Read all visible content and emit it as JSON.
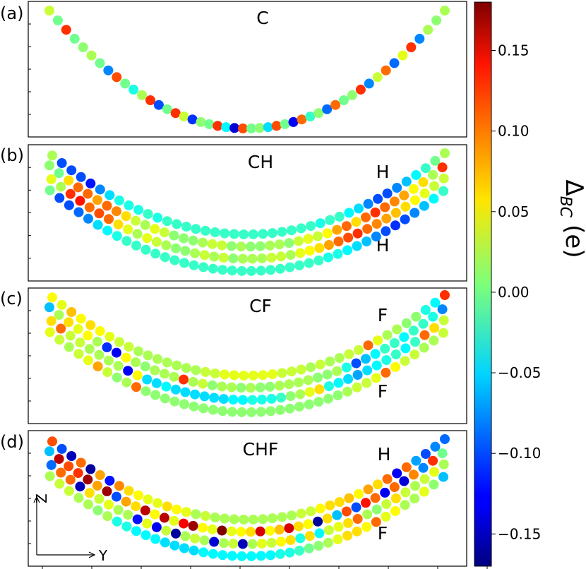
{
  "chart_data": {
    "type": "scatter",
    "colormap": "jet",
    "colorbar": {
      "label": "Δ",
      "label_sub": "BC",
      "label_unit": "(e)",
      "range": [
        -0.17,
        0.18
      ],
      "ticks": [
        0.15,
        0.1,
        0.05,
        0.0,
        -0.05,
        -0.1,
        -0.15
      ],
      "tick_labels": [
        "0.15",
        "0.10",
        "0.05",
        "0.00",
        "−0.05",
        "−0.10",
        "−0.15"
      ]
    },
    "axes_labels": {
      "z": "Z",
      "y": "Y"
    },
    "panels": [
      {
        "label": "(a)",
        "title": "C",
        "side_labels": [],
        "rows": [
          {
            "count": 48,
            "amp": 1.0,
            "offset": 0.0,
            "x0": 0.0,
            "x1": 1.0,
            "values": [
              0.03,
              0.0,
              0.12,
              0.0,
              0.01,
              0.02,
              0.0,
              -0.08,
              0.11,
              0.0,
              -0.03,
              0.02,
              0.12,
              -0.1,
              0.0,
              0.12,
              0.03,
              -0.11,
              0.01,
              0.0,
              0.12,
              -0.04,
              -0.14,
              0.11,
              0.0,
              0.01,
              -0.05,
              0.11,
              0.0,
              -0.13,
              0.1,
              -0.02,
              0.01,
              -0.09,
              0.1,
              0.0,
              0.01,
              0.12,
              -0.08,
              0.03,
              0.1,
              -0.09,
              0.04,
              0.12,
              -0.08,
              0.02,
              0.01,
              0.02
            ]
          }
        ]
      },
      {
        "label": "(b)",
        "title": "CH",
        "side_labels": [
          {
            "text": "H",
            "pos": "top"
          },
          {
            "text": "H",
            "pos": "bottom"
          }
        ],
        "rows": [
          {
            "count": 42,
            "amp": 1.0,
            "offset": 0.0,
            "x0": 0.06,
            "x1": 1.0,
            "values": [
              0.02,
              -0.1,
              -0.1,
              -0.1,
              -0.12,
              -0.08,
              -0.05,
              -0.03,
              -0.03,
              -0.03,
              -0.02,
              -0.03,
              -0.02,
              -0.02,
              -0.02,
              -0.02,
              -0.02,
              -0.02,
              -0.02,
              -0.02,
              -0.02,
              -0.02,
              -0.02,
              -0.02,
              -0.02,
              -0.02,
              -0.02,
              -0.02,
              -0.03,
              -0.02,
              -0.02,
              -0.04,
              -0.05,
              -0.08,
              -0.1,
              -0.1,
              -0.08,
              -0.06,
              -0.04,
              -0.02,
              0.0,
              0.02
            ]
          },
          {
            "count": 42,
            "amp": 1.0,
            "offset": 0.11,
            "x0": 0.0,
            "x1": 0.95,
            "values": [
              0.01,
              0.0,
              0.06,
              0.1,
              0.1,
              0.08,
              0.1,
              0.09,
              0.06,
              0.03,
              0.02,
              0.04,
              0.03,
              0.01,
              0.01,
              0.01,
              0.02,
              0.03,
              0.03,
              0.01,
              0.02,
              0.01,
              0.01,
              0.02,
              0.02,
              0.01,
              0.03,
              0.04,
              0.03,
              0.05,
              0.08,
              0.1,
              0.06,
              0.1,
              0.12,
              0.1,
              0.09,
              0.08,
              0.05,
              0.06,
              0.02,
              0.12
            ]
          },
          {
            "count": 42,
            "amp": 1.0,
            "offset": 0.22,
            "x0": 0.04,
            "x1": 0.98,
            "values": [
              0.04,
              0.02,
              0.12,
              0.13,
              0.1,
              0.11,
              0.1,
              0.06,
              0.04,
              0.02,
              0.04,
              0.03,
              0.02,
              0.01,
              0.01,
              0.02,
              0.03,
              0.02,
              0.03,
              0.01,
              0.02,
              0.02,
              0.02,
              0.03,
              0.03,
              0.02,
              0.04,
              0.05,
              0.06,
              0.08,
              0.1,
              0.11,
              0.12,
              0.1,
              0.09,
              0.08,
              0.07,
              0.06,
              0.05,
              0.04,
              0.03,
              0.03
            ]
          },
          {
            "count": 42,
            "amp": 1.0,
            "offset": 0.33,
            "x0": 0.01,
            "x1": 0.97,
            "values": [
              0.0,
              -0.1,
              -0.1,
              -0.09,
              -0.08,
              -0.05,
              -0.04,
              -0.03,
              -0.02,
              -0.02,
              -0.02,
              -0.02,
              -0.02,
              -0.02,
              -0.02,
              -0.02,
              -0.02,
              -0.02,
              -0.02,
              -0.02,
              -0.02,
              -0.02,
              -0.02,
              -0.02,
              -0.02,
              -0.02,
              -0.02,
              -0.02,
              -0.02,
              -0.03,
              -0.03,
              -0.04,
              -0.05,
              -0.06,
              -0.08,
              -0.1,
              -0.11,
              -0.1,
              -0.08,
              -0.06,
              -0.04,
              -0.02
            ]
          }
        ]
      },
      {
        "label": "(c)",
        "title": "CF",
        "side_labels": [
          {
            "text": "F",
            "pos": "top"
          },
          {
            "text": "F",
            "pos": "bottom"
          }
        ],
        "rows": [
          {
            "count": 42,
            "amp": 1.0,
            "offset": 0.0,
            "x0": 0.06,
            "x1": 1.0,
            "values": [
              0.05,
              0.04,
              0.07,
              0.05,
              0.06,
              0.05,
              0.04,
              0.03,
              0.03,
              0.02,
              0.02,
              0.02,
              0.02,
              0.02,
              0.02,
              0.02,
              0.03,
              0.03,
              0.04,
              0.04,
              0.04,
              0.04,
              0.04,
              0.04,
              0.03,
              0.03,
              0.03,
              0.02,
              0.03,
              0.02,
              0.02,
              0.03,
              0.03,
              0.1,
              0.04,
              0.02,
              0.02,
              0.01,
              0.01,
              -0.03,
              -0.04,
              0.12
            ]
          },
          {
            "count": 42,
            "amp": 1.0,
            "offset": 0.11,
            "x0": 0.0,
            "x1": 0.95,
            "values": [
              -0.06,
              0.02,
              0.06,
              0.04,
              0.05,
              0.02,
              -0.11,
              -0.13,
              0.05,
              0.02,
              0.01,
              0.02,
              0.02,
              0.02,
              0.12,
              0.02,
              0.03,
              0.01,
              0.02,
              0.02,
              0.01,
              0.02,
              0.01,
              0.01,
              0.02,
              0.02,
              0.02,
              0.02,
              0.01,
              0.01,
              0.02,
              -0.03,
              -0.1,
              -0.06,
              -0.04,
              -0.02,
              -0.02,
              -0.04,
              -0.02,
              -0.02,
              -0.03,
              -0.08
            ]
          },
          {
            "count": 42,
            "amp": 1.0,
            "offset": 0.22,
            "x0": 0.04,
            "x1": 0.98,
            "values": [
              0.06,
              0.1,
              0.03,
              0.03,
              0.02,
              0.02,
              0.02,
              0.02,
              -0.13,
              0.05,
              -0.05,
              -0.05,
              -0.04,
              -0.05,
              -0.05,
              -0.05,
              -0.05,
              -0.05,
              -0.05,
              -0.04,
              -0.04,
              -0.03,
              -0.03,
              -0.03,
              -0.02,
              0.01,
              0.02,
              0.04,
              0.06,
              -0.03,
              -0.04,
              -0.05,
              -0.07,
              -0.05,
              -0.04,
              -0.03,
              -0.02,
              -0.04,
              -0.02,
              0.1,
              0.06,
              0.03
            ]
          },
          {
            "count": 42,
            "amp": 1.0,
            "offset": 0.33,
            "x0": 0.01,
            "x1": 0.97,
            "values": [
              0.04,
              0.03,
              0.02,
              0.03,
              0.04,
              0.08,
              0.03,
              0.01,
              0.02,
              0.1,
              0.01,
              0.01,
              0.01,
              0.01,
              0.01,
              0.01,
              0.01,
              0.01,
              0.01,
              0.01,
              0.01,
              0.01,
              0.01,
              0.01,
              0.01,
              0.01,
              0.01,
              0.01,
              0.01,
              0.01,
              0.01,
              0.02,
              0.03,
              0.03,
              0.04,
              0.1,
              0.05,
              0.03,
              0.03,
              0.02,
              0.02,
              0.03
            ]
          }
        ]
      },
      {
        "label": "(d)",
        "title": "CHF",
        "side_labels": [
          {
            "text": "H",
            "pos": "top"
          },
          {
            "text": "F",
            "pos": "bottom"
          }
        ],
        "rows": [
          {
            "count": 42,
            "amp": 1.0,
            "offset": 0.0,
            "x0": 0.06,
            "x1": 1.0,
            "values": [
              0.11,
              -0.1,
              -0.15,
              0.1,
              -0.16,
              0.08,
              -0.12,
              0.09,
              0.06,
              0.05,
              0.04,
              0.04,
              0.06,
              0.05,
              0.04,
              0.02,
              0.03,
              0.02,
              0.02,
              0.02,
              0.02,
              0.02,
              0.02,
              0.02,
              0.02,
              0.02,
              0.03,
              0.03,
              0.05,
              0.06,
              0.06,
              0.07,
              0.05,
              0.08,
              0.06,
              0.1,
              -0.13,
              0.1,
              -0.07,
              -0.1,
              -0.08,
              -0.09
            ]
          },
          {
            "count": 42,
            "amp": 1.0,
            "offset": 0.11,
            "x0": 0.0,
            "x1": 0.95,
            "values": [
              -0.06,
              0.16,
              0.11,
              0.12,
              0.17,
              0.08,
              0.17,
              -0.1,
              0.08,
              0.06,
              0.16,
              0.05,
              0.16,
              0.04,
              0.14,
              0.17,
              0.05,
              0.04,
              0.18,
              0.04,
              0.05,
              0.06,
              0.15,
              0.05,
              0.07,
              0.15,
              0.06,
              0.05,
              -0.16,
              0.06,
              -0.06,
              0.11,
              -0.1,
              0.13,
              0.1,
              -0.13,
              0.1,
              -0.14,
              0.09,
              -0.08,
              0.12,
              0.0
            ]
          },
          {
            "count": 42,
            "amp": 1.0,
            "offset": 0.22,
            "x0": 0.04,
            "x1": 0.98,
            "values": [
              -0.09,
              0.1,
              0.1,
              -0.15,
              0.06,
              0.03,
              0.04,
              0.02,
              0.02,
              -0.12,
              0.04,
              -0.13,
              0.03,
              -0.16,
              0.02,
              0.03,
              0.02,
              -0.14,
              0.02,
              0.03,
              -0.15,
              0.02,
              0.04,
              0.03,
              0.05,
              0.06,
              -0.03,
              0.06,
              -0.04,
              0.03,
              0.04,
              0.06,
              0.1,
              0.02,
              0.01,
              0.03,
              0.06,
              0.03,
              0.02,
              0.03,
              0.04,
              0.02
            ]
          },
          {
            "count": 42,
            "amp": 1.0,
            "offset": 0.33,
            "x0": 0.01,
            "x1": 0.97,
            "values": [
              0.02,
              0.03,
              0.03,
              0.02,
              0.02,
              0.01,
              0.02,
              -0.03,
              -0.03,
              -0.04,
              -0.04,
              -0.04,
              -0.05,
              -0.05,
              -0.05,
              -0.05,
              -0.04,
              -0.04,
              -0.04,
              -0.04,
              -0.04,
              -0.04,
              -0.04,
              -0.04,
              -0.03,
              -0.03,
              -0.02,
              0.0,
              0.01,
              0.02,
              0.04,
              0.06,
              0.06,
              0.05,
              0.1,
              0.04,
              0.05,
              0.02,
              0.02,
              0.04,
              0.01,
              -0.06
            ]
          }
        ]
      }
    ]
  }
}
